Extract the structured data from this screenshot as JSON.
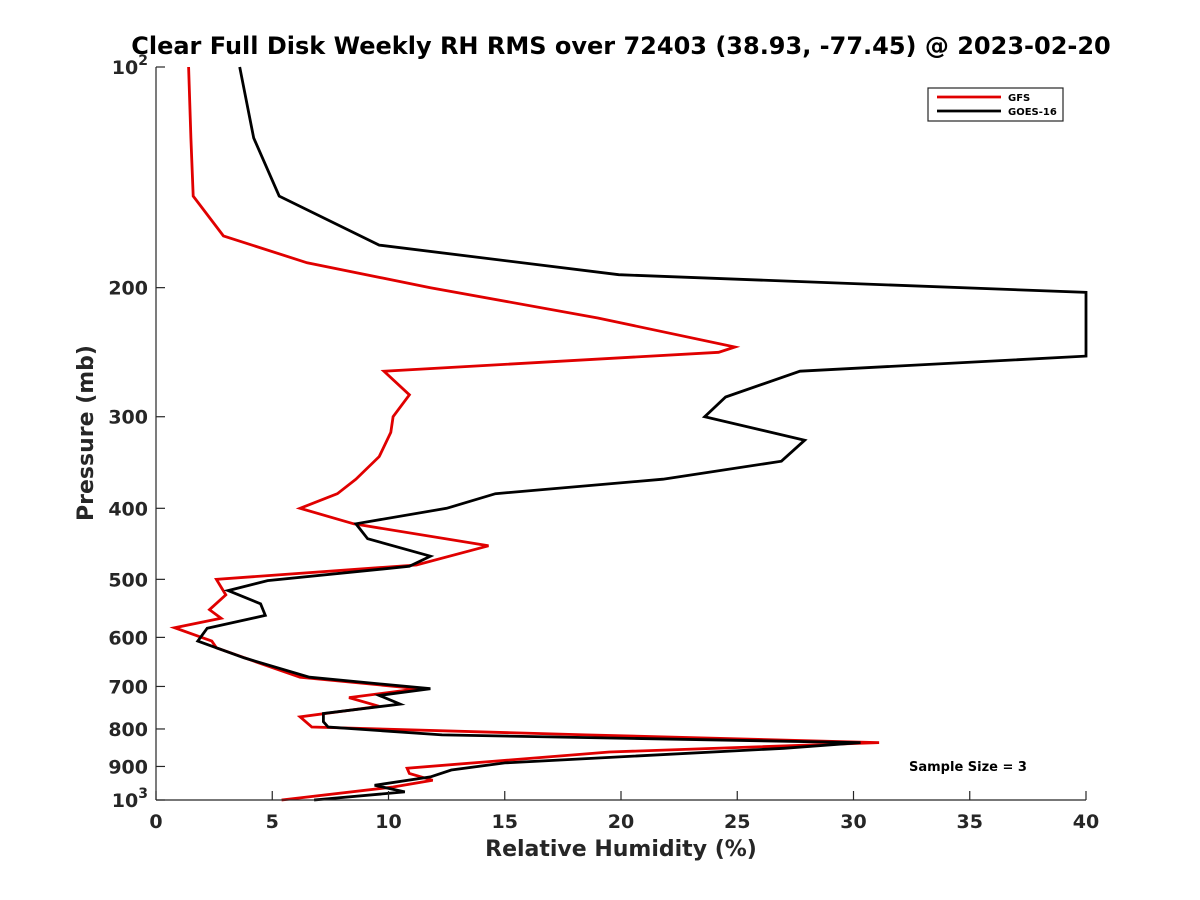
{
  "chart_data": {
    "type": "line",
    "title": "Clear Full Disk Weekly RH RMS over 72403 (38.93, -77.45) @ 2023-02-20",
    "xlabel": "Relative Humidity (%)",
    "ylabel": "Pressure (mb)",
    "xlim": [
      0,
      40
    ],
    "ylim": [
      100,
      1000
    ],
    "y_scale": "log",
    "y_reversed": true,
    "x_ticks": [
      0,
      5,
      10,
      15,
      20,
      25,
      30,
      35,
      40
    ],
    "x_tick_labels": [
      "0",
      "5",
      "10",
      "15",
      "20",
      "25",
      "30",
      "35",
      "40"
    ],
    "y_ticks": [
      100,
      200,
      300,
      400,
      500,
      600,
      700,
      800,
      900,
      1000
    ],
    "y_tick_labels": [
      {
        "base": "10",
        "exp": "2"
      },
      {
        "base": "200",
        "exp": ""
      },
      {
        "base": "300",
        "exp": ""
      },
      {
        "base": "400",
        "exp": ""
      },
      {
        "base": "500",
        "exp": ""
      },
      {
        "base": "600",
        "exp": ""
      },
      {
        "base": "700",
        "exp": ""
      },
      {
        "base": "800",
        "exp": ""
      },
      {
        "base": "900",
        "exp": ""
      },
      {
        "base": "10",
        "exp": "3"
      }
    ],
    "grid": false,
    "legend_position": "top-right",
    "annotation": "Sample Size = 3",
    "series": [
      {
        "name": "GFS",
        "color": "#e00000",
        "points": [
          [
            1.4,
            100
          ],
          [
            1.5,
            125
          ],
          [
            1.6,
            150
          ],
          [
            2.9,
            170
          ],
          [
            6.5,
            185
          ],
          [
            11.8,
            200
          ],
          [
            19.0,
            220
          ],
          [
            24.9,
            241
          ],
          [
            24.2,
            245
          ],
          [
            9.8,
            260
          ],
          [
            10.9,
            280
          ],
          [
            10.2,
            300
          ],
          [
            10.1,
            315
          ],
          [
            9.6,
            340
          ],
          [
            8.6,
            365
          ],
          [
            7.8,
            382
          ],
          [
            6.2,
            400
          ],
          [
            8.5,
            420
          ],
          [
            14.3,
            450
          ],
          [
            11.2,
            478
          ],
          [
            2.6,
            500
          ],
          [
            3.0,
            525
          ],
          [
            2.3,
            550
          ],
          [
            2.8,
            565
          ],
          [
            0.8,
            582
          ],
          [
            2.4,
            607
          ],
          [
            2.6,
            620
          ],
          [
            4.3,
            648
          ],
          [
            6.2,
            680
          ],
          [
            11.3,
            705
          ],
          [
            8.3,
            725
          ],
          [
            9.6,
            745
          ],
          [
            6.2,
            770
          ],
          [
            6.7,
            795
          ],
          [
            18.5,
            815
          ],
          [
            31.1,
            835
          ],
          [
            19.5,
            860
          ],
          [
            14.6,
            885
          ],
          [
            10.8,
            905
          ],
          [
            10.9,
            920
          ],
          [
            11.9,
            940
          ],
          [
            10.2,
            960
          ],
          [
            5.4,
            1000
          ]
        ]
      },
      {
        "name": "GOES-16",
        "color": "#000000",
        "points": [
          [
            3.6,
            100
          ],
          [
            4.2,
            125
          ],
          [
            5.3,
            150
          ],
          [
            9.6,
            175
          ],
          [
            19.9,
            192
          ],
          [
            40.0,
            203
          ],
          [
            40.0,
            248
          ],
          [
            27.7,
            260
          ],
          [
            24.5,
            282
          ],
          [
            23.6,
            300
          ],
          [
            27.9,
            323
          ],
          [
            26.9,
            345
          ],
          [
            21.8,
            365
          ],
          [
            14.6,
            382
          ],
          [
            12.5,
            400
          ],
          [
            8.6,
            420
          ],
          [
            9.1,
            440
          ],
          [
            11.8,
            465
          ],
          [
            10.9,
            480
          ],
          [
            4.8,
            502
          ],
          [
            3.1,
            518
          ],
          [
            4.5,
            540
          ],
          [
            4.7,
            560
          ],
          [
            2.2,
            583
          ],
          [
            1.8,
            607
          ],
          [
            3.8,
            640
          ],
          [
            6.6,
            680
          ],
          [
            11.8,
            705
          ],
          [
            9.6,
            720
          ],
          [
            10.5,
            740
          ],
          [
            7.2,
            762
          ],
          [
            7.2,
            782
          ],
          [
            7.4,
            795
          ],
          [
            12.3,
            815
          ],
          [
            30.3,
            835
          ],
          [
            27.0,
            850
          ],
          [
            15.0,
            890
          ],
          [
            12.7,
            910
          ],
          [
            11.8,
            930
          ],
          [
            9.4,
            955
          ],
          [
            10.7,
            975
          ],
          [
            6.8,
            1000
          ]
        ]
      }
    ]
  }
}
